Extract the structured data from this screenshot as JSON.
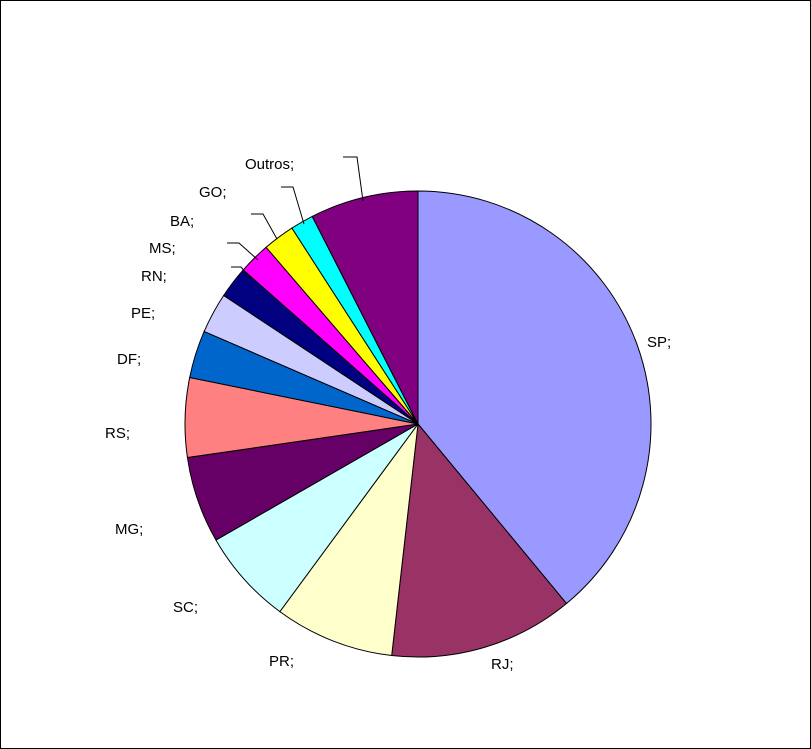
{
  "chart_data": {
    "type": "pie",
    "title": "",
    "slices": [
      {
        "label": "SP;",
        "value": 39.0,
        "color": "#9999FF"
      },
      {
        "label": "RJ;",
        "value": 12.8,
        "color": "#993366"
      },
      {
        "label": "PR;",
        "value": 8.3,
        "color": "#FFFFCC"
      },
      {
        "label": "SC;",
        "value": 6.6,
        "color": "#CCFFFF"
      },
      {
        "label": "MG;",
        "value": 6.0,
        "color": "#660066"
      },
      {
        "label": "RS;",
        "value": 5.5,
        "color": "#FF8080"
      },
      {
        "label": "DF;",
        "value": 3.3,
        "color": "#0066CC"
      },
      {
        "label": "PE;",
        "value": 2.8,
        "color": "#CCCCFF"
      },
      {
        "label": "RN;",
        "value": 2.2,
        "color": "#000080"
      },
      {
        "label": "MS;",
        "value": 2.2,
        "color": "#FF00FF"
      },
      {
        "label": "BA;",
        "value": 2.2,
        "color": "#FFFF00"
      },
      {
        "label": "GO;",
        "value": 1.6,
        "color": "#00FFFF"
      },
      {
        "label": "Outros;",
        "value": 7.5,
        "color": "#800080"
      }
    ]
  }
}
